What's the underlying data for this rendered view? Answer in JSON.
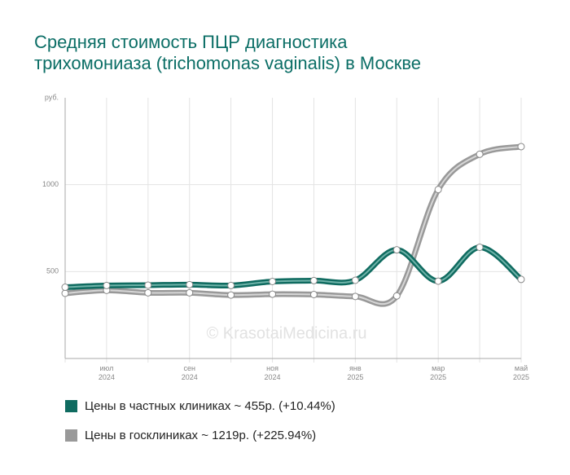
{
  "chart_data": {
    "type": "line",
    "title": "Средняя стоимость ПЦР диагностика трихомониаза (trichomonas vaginalis) в Москве",
    "ylabel": "руб.",
    "watermark": "© KrasotaiMedicina.ru",
    "categories": [
      null,
      "июл 2024",
      null,
      "сен 2024",
      null,
      "ноя 2024",
      null,
      "янв 2025",
      null,
      "мар 2025",
      null,
      "май 2025"
    ],
    "series": [
      {
        "name": "Цены в частных клиниках ~ 455р. (+10.44%)",
        "color": "#0f6b60",
        "light": "#6fb3a9",
        "values": [
          410,
          420,
          422,
          425,
          420,
          443,
          448,
          450,
          625,
          445,
          640,
          455
        ]
      },
      {
        "name": "Цены в госклиниках ~ 1219р. (+225.94%)",
        "color": "#999999",
        "light": "#d6d6d6",
        "values": [
          375,
          392,
          378,
          378,
          365,
          370,
          368,
          357,
          360,
          972,
          1175,
          1219
        ]
      }
    ],
    "ylim": [
      0,
      1500
    ],
    "yticks": [
      500,
      1000
    ],
    "grid": true
  }
}
